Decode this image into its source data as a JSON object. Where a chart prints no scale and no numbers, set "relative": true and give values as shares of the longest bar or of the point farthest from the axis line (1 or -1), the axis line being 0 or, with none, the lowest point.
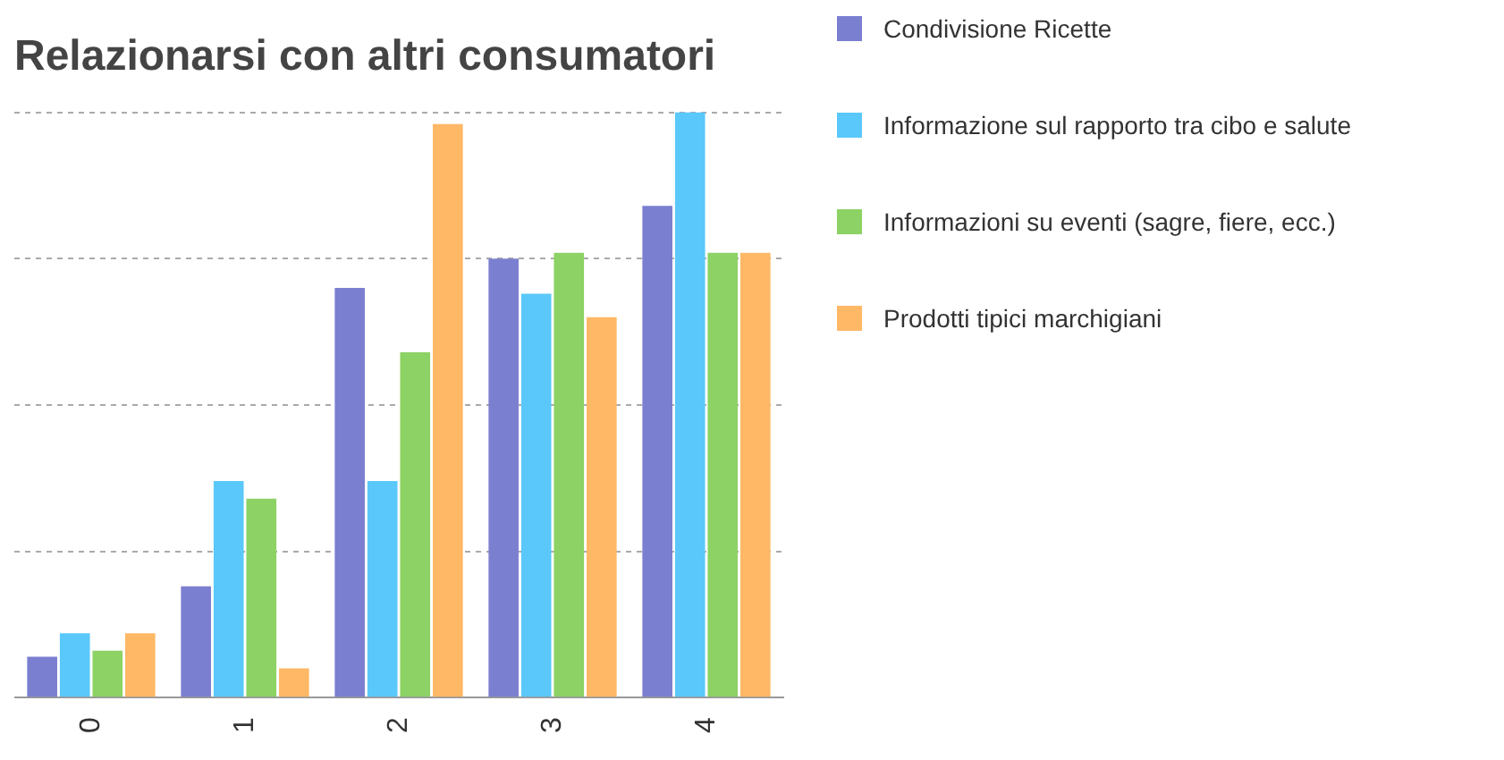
{
  "chart_data": {
    "type": "bar",
    "title": "Relazionarsi con altri consumatori",
    "relative": true,
    "categories": [
      "0",
      "1",
      "2",
      "3",
      "4"
    ],
    "series": [
      {
        "name": "Condivisione Ricette",
        "color": "#7b7fd0",
        "values": [
          0.07,
          0.19,
          0.7,
          0.75,
          0.84
        ]
      },
      {
        "name": "Informazione sul rapporto tra cibo e salute",
        "color": "#5ac8fa",
        "values": [
          0.11,
          0.37,
          0.37,
          0.69,
          1
        ]
      },
      {
        "name": "Informazioni su eventi (sagre, fiere, ecc.)",
        "color": "#8cd264",
        "values": [
          0.08,
          0.34,
          0.59,
          0.76,
          0.76
        ]
      },
      {
        "name": "Prodotti tipici marchigiani",
        "color": "#ffb866",
        "values": [
          0.11,
          0.05,
          0.98,
          0.65,
          0.76
        ]
      }
    ],
    "grid": "y",
    "legend": "right"
  }
}
